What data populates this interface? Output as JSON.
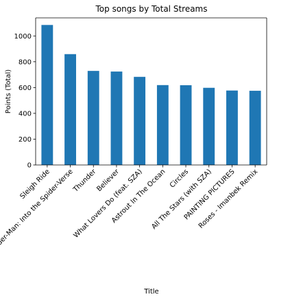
{
  "chart_data": {
    "type": "bar",
    "title": "Top songs by Total Streams",
    "xlabel": "Title",
    "ylabel": "Points (Total)",
    "categories": [
      "Sleigh Ride",
      "Sunflower - Spider-Man: Into the Spider-Verse",
      "Thunder",
      "Believer",
      "What Lovers Do (feat. SZA)",
      "Astrout In The Ocean",
      "Circles",
      "All The Stars (with SZA)",
      "PAINTING PICTURES",
      "Roses - Imanbek Remix"
    ],
    "values": [
      1085,
      859,
      729,
      724,
      683,
      619,
      618,
      598,
      577,
      575
    ],
    "ylim": [
      0,
      1140
    ],
    "yticks": [
      0,
      200,
      400,
      600,
      800,
      1000
    ],
    "bar_color": "#1f77b4",
    "grid": false,
    "legend": false
  }
}
